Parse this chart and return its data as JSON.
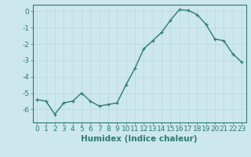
{
  "xlabel": "Humidex (Indice chaleur)",
  "ylabel": "",
  "x": [
    0,
    1,
    2,
    3,
    4,
    5,
    6,
    7,
    8,
    9,
    10,
    11,
    12,
    13,
    14,
    15,
    16,
    17,
    18,
    19,
    20,
    21,
    22,
    23
  ],
  "y": [
    -5.4,
    -5.5,
    -6.3,
    -5.6,
    -5.5,
    -5.0,
    -5.5,
    -5.8,
    -5.7,
    -5.6,
    -4.5,
    -3.5,
    -2.3,
    -1.8,
    -1.3,
    -0.55,
    0.1,
    0.05,
    -0.2,
    -0.8,
    -1.7,
    -1.8,
    -2.6,
    -3.1
  ],
  "line_color": "#2d7a6e",
  "marker": "+",
  "bg_color": "#cce8ec",
  "grid_color": "#b8d8dc",
  "axis_color": "#2d7a6e",
  "ylim": [
    -6.8,
    0.4
  ],
  "xlim": [
    -0.5,
    23.5
  ],
  "yticks": [
    0,
    -1,
    -2,
    -3,
    -4,
    -5,
    -6
  ],
  "xtick_labels": [
    "0",
    "1",
    "2",
    "3",
    "4",
    "5",
    "6",
    "7",
    "8",
    "9",
    "10",
    "11",
    "12",
    "13",
    "14",
    "15",
    "16",
    "17",
    "18",
    "19",
    "20",
    "21",
    "22",
    "23"
  ],
  "xlabel_fontsize": 7.5,
  "tick_fontsize": 6.5,
  "linewidth": 1.0,
  "markersize": 3.5
}
